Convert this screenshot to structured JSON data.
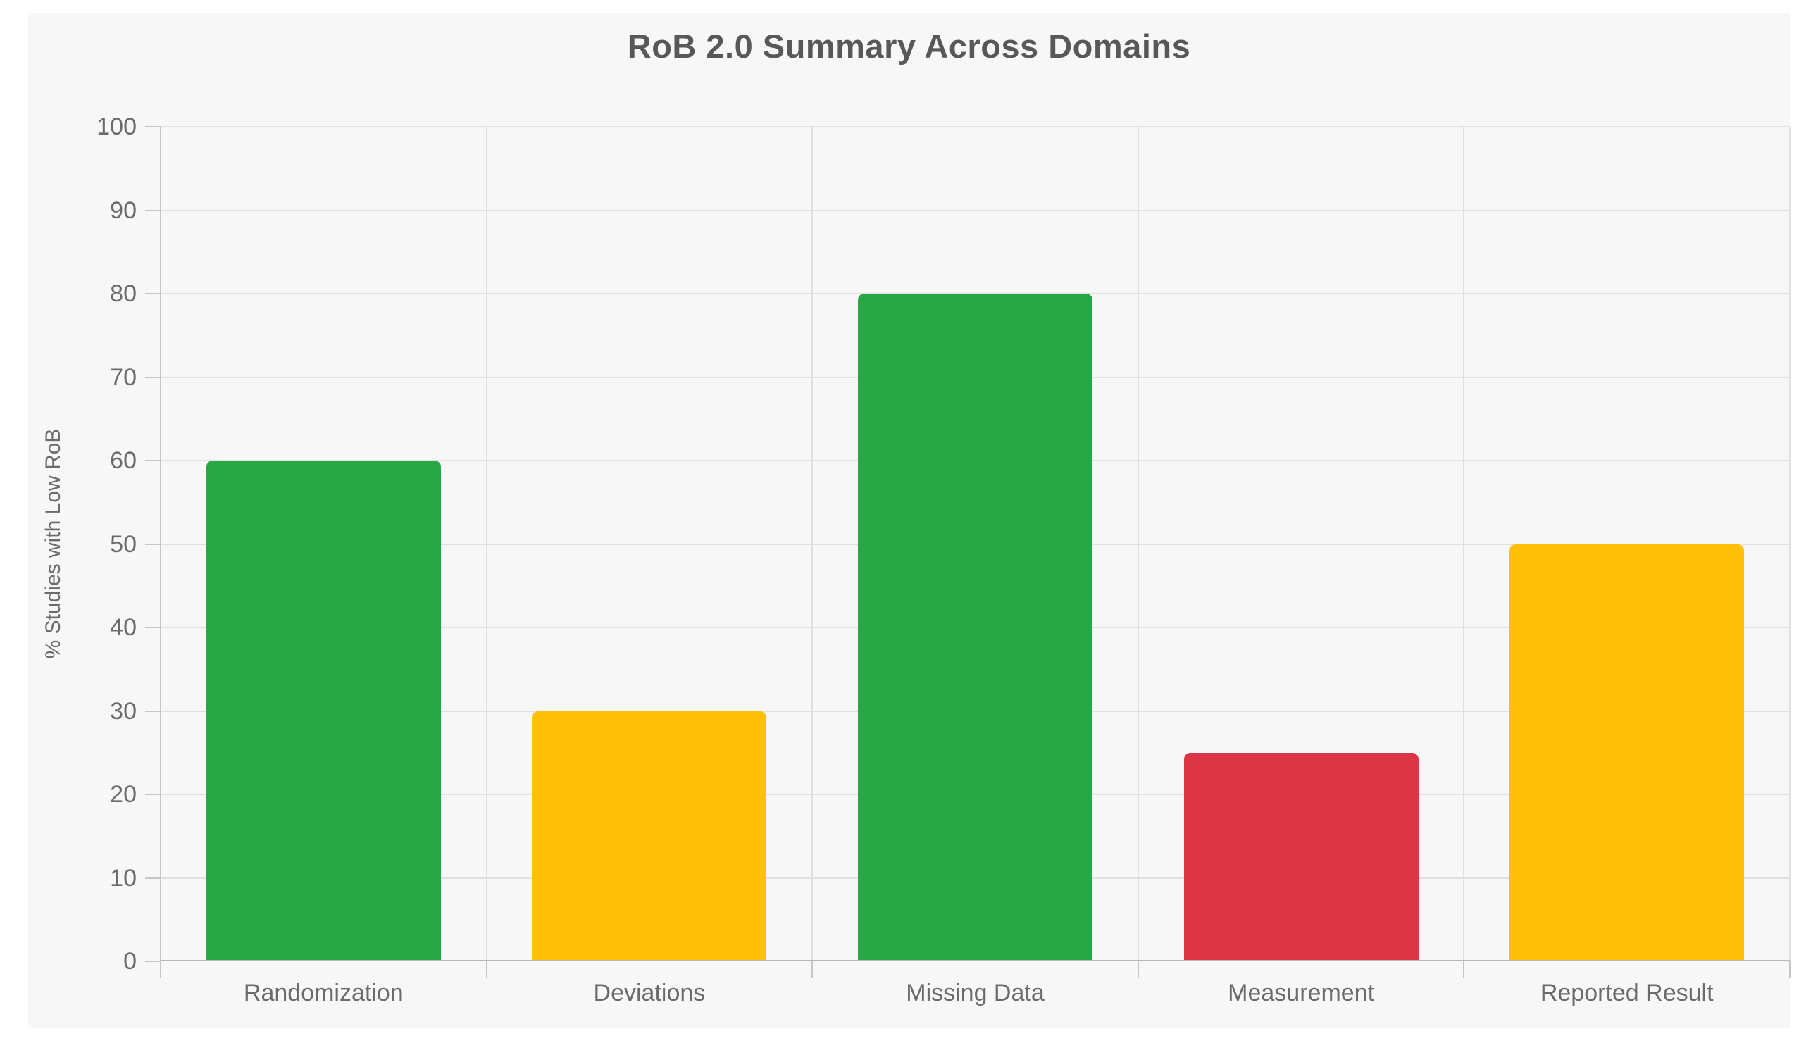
{
  "chart_data": {
    "type": "bar",
    "title": "RoB 2.0 Summary Across Domains",
    "ylabel": "% Studies with Low RoB",
    "xlabel": "",
    "categories": [
      "Randomization",
      "Deviations",
      "Missing Data",
      "Measurement",
      "Reported Result"
    ],
    "values": [
      60,
      30,
      80,
      25,
      50
    ],
    "bar_colors": [
      "#28a745",
      "#ffc107",
      "#28a745",
      "#dc3545",
      "#ffc107"
    ],
    "ylim": [
      0,
      100
    ],
    "yticks": [
      0,
      10,
      20,
      30,
      40,
      50,
      60,
      70,
      80,
      90,
      100
    ],
    "grid": true,
    "legend_position": "none"
  },
  "palette": {
    "page_background": "#ffffff",
    "panel_background": "#f7f7f7",
    "gridline": "#e0e0e0",
    "axis_line": "#c6c6c6",
    "axis_baseline": "#b7b7b7",
    "title_text": "#58585a",
    "tick_text": "#6b6b6b"
  }
}
